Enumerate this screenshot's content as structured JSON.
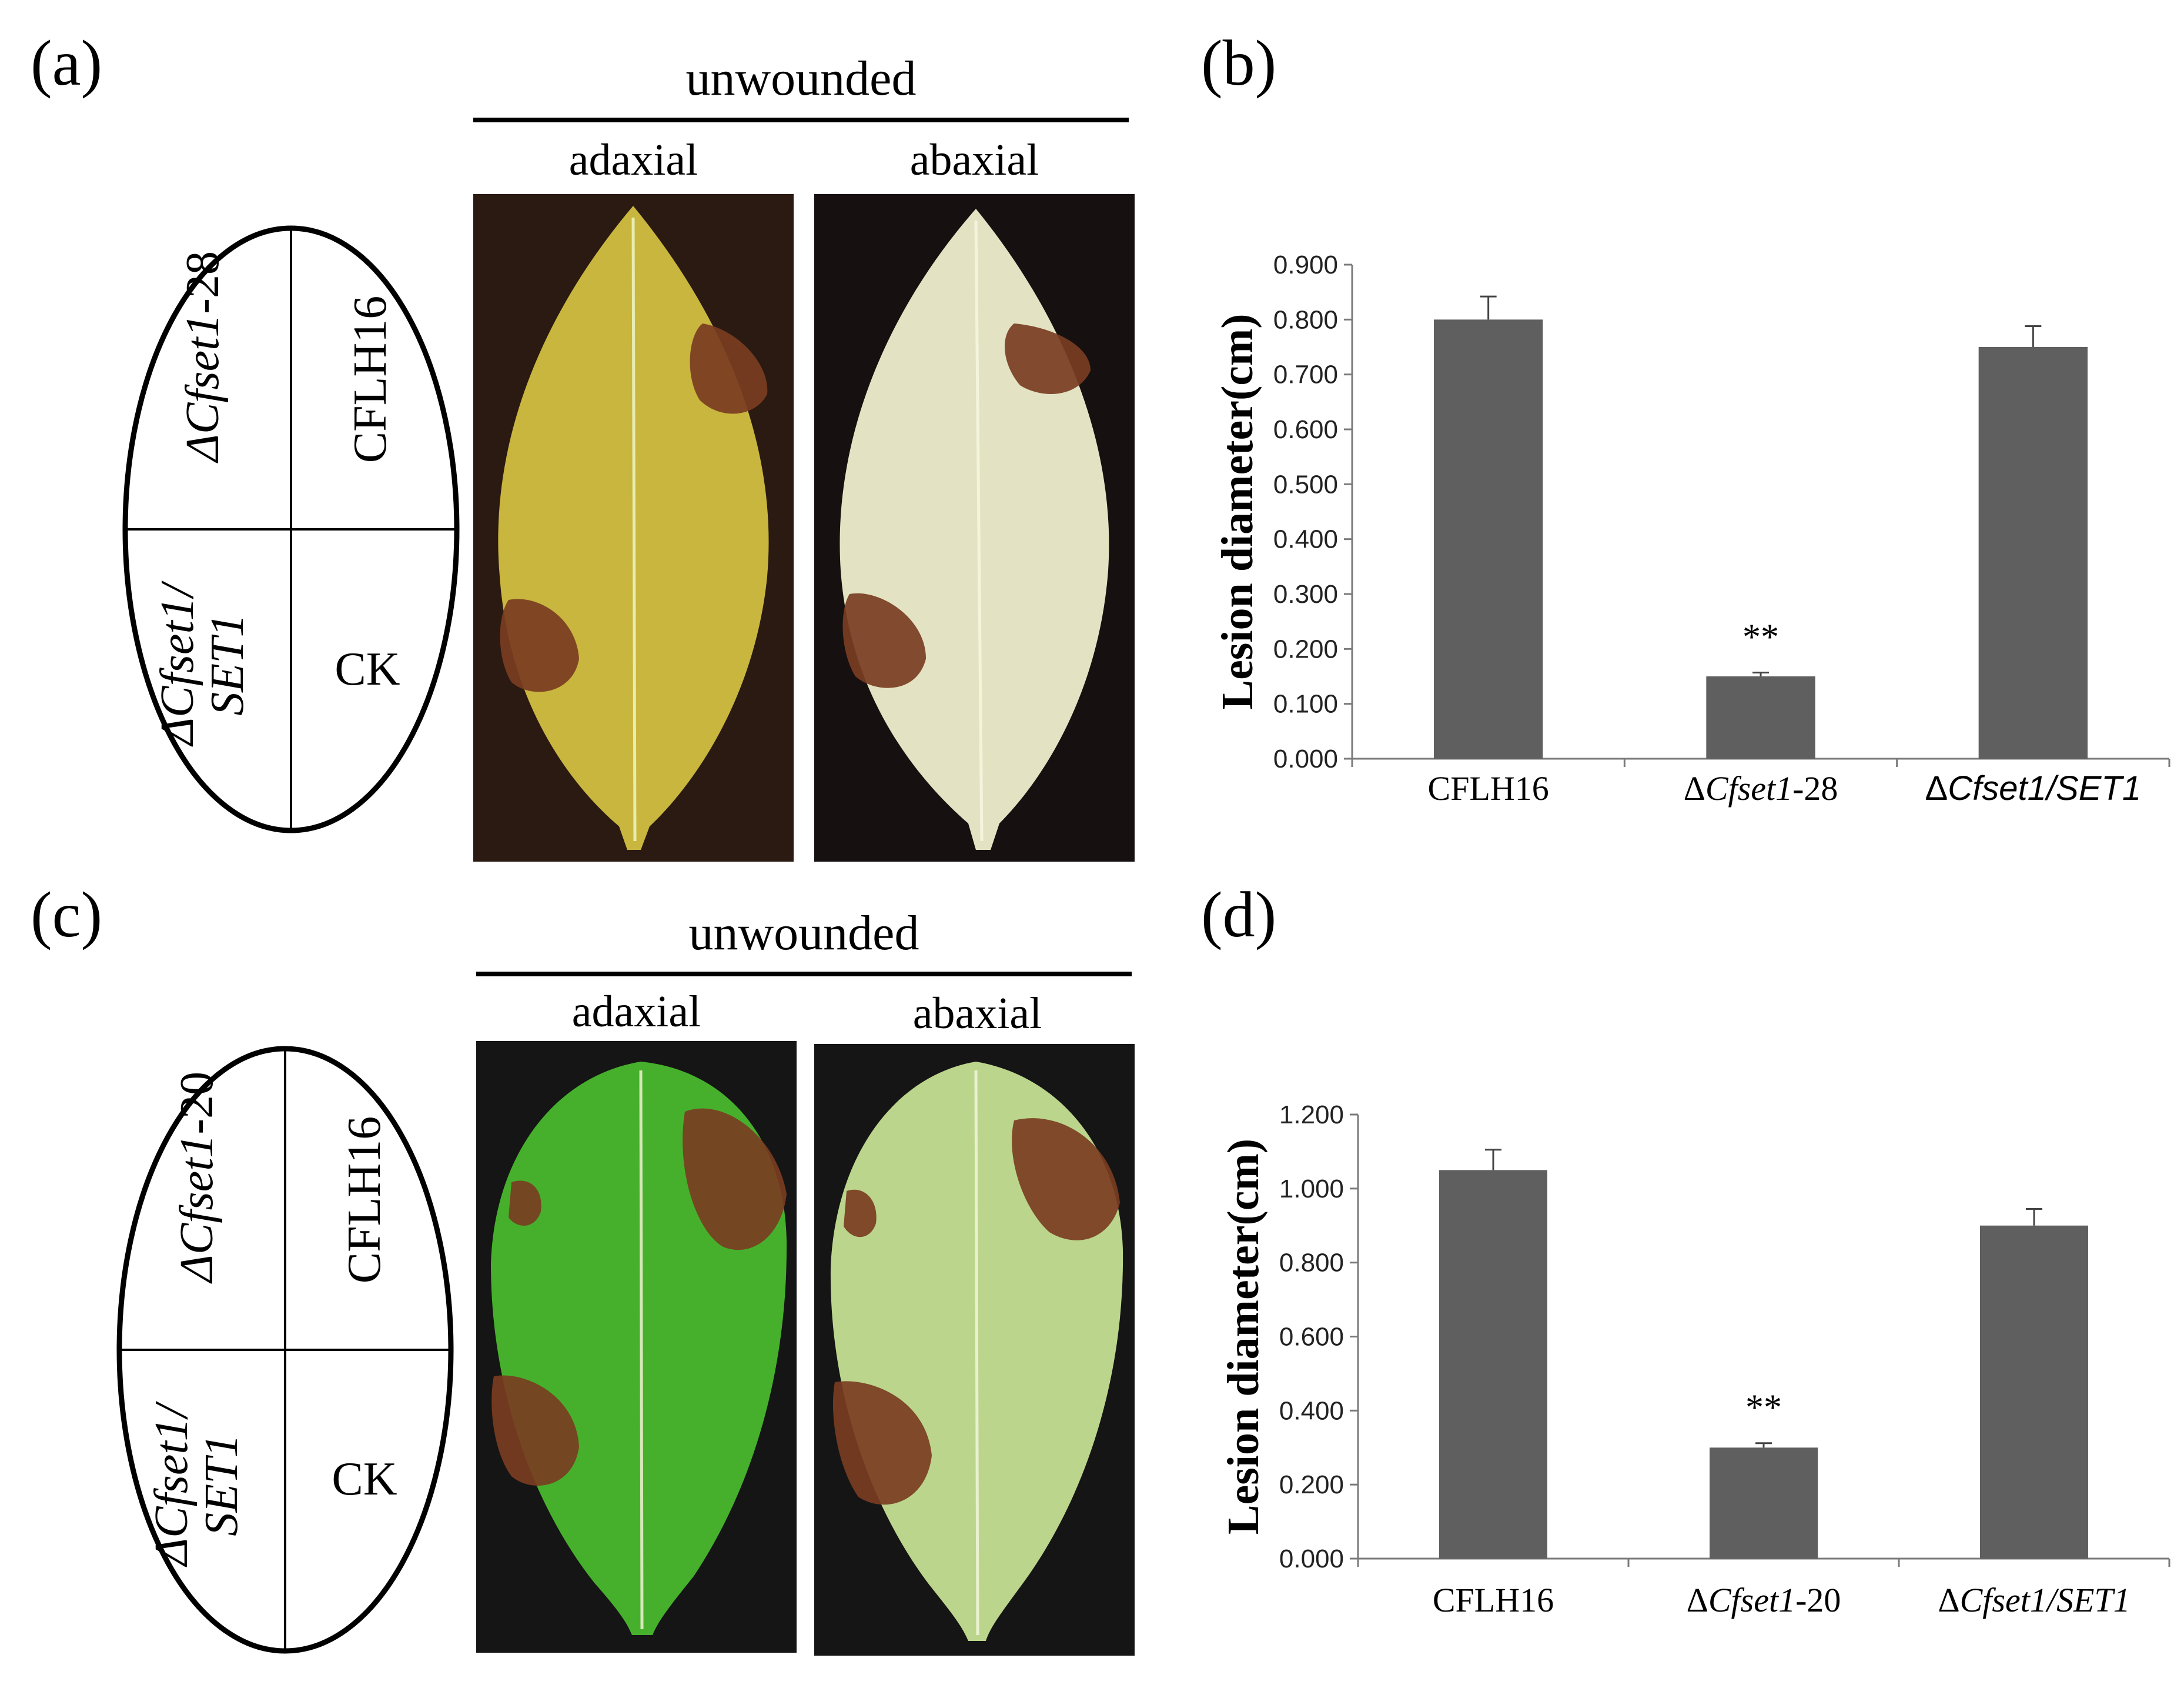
{
  "panels": {
    "a": {
      "label": "(a)",
      "header": "unwounded",
      "adaxial": "adaxial",
      "abaxial": "abaxial",
      "quadrants": {
        "top_left_prefix": "ΔCfset1",
        "top_left_suffix": "-28",
        "top_right": "CFLH16",
        "bottom_left_line1": "ΔCfset1/",
        "bottom_left_line2": "SET1",
        "bottom_right": "CK"
      }
    },
    "b": {
      "label": "(b)"
    },
    "c": {
      "label": "(c)",
      "header": "unwounded",
      "adaxial": "adaxial",
      "abaxial": "abaxial",
      "quadrants": {
        "top_left_prefix": "ΔCfset1",
        "top_left_suffix": "-20",
        "top_right": "CFLH16",
        "bottom_left_line1": "ΔCfset1/",
        "bottom_left_line2": "SET1",
        "bottom_right": "CK"
      }
    },
    "d": {
      "label": "(d)"
    }
  },
  "colors": {
    "bar": "#5f5f5f",
    "leaf_a_adaxial": "#c9b63e",
    "leaf_a_abaxial": "#e3e3c3",
    "leaf_c_adaxial": "#46b02c",
    "leaf_c_abaxial": "#bcd58c",
    "lesion": "#7a3d22",
    "bg_a_adaxial": "#2a1a12",
    "bg_a_abaxial": "#161010",
    "bg_c": "#151515"
  },
  "chart_data": [
    {
      "type": "bar",
      "panel": "b",
      "categories": [
        "CFLH16",
        "ΔCfset1-28",
        "ΔCfset1/SET1"
      ],
      "values": [
        0.8,
        0.15,
        0.75
      ],
      "errors": [
        0.042,
        0.007,
        0.038
      ],
      "significance": [
        "",
        "**",
        ""
      ],
      "ylabel": "Lesion diameter(cm)",
      "ylim": [
        0,
        0.9
      ],
      "yticks": [
        "0.000",
        "0.100",
        "0.200",
        "0.300",
        "0.400",
        "0.500",
        "0.600",
        "0.700",
        "0.800",
        "0.900"
      ]
    },
    {
      "type": "bar",
      "panel": "d",
      "categories": [
        "CFLH16",
        "ΔCfset1-20",
        "ΔCfset1/SET1"
      ],
      "values": [
        1.05,
        0.3,
        0.9
      ],
      "errors": [
        0.055,
        0.012,
        0.045
      ],
      "significance": [
        "",
        "**",
        ""
      ],
      "ylabel": "Lesion diameter(cm)",
      "ylim": [
        0,
        1.2
      ],
      "yticks": [
        "0.000",
        "0.200",
        "0.400",
        "0.600",
        "0.800",
        "1.000",
        "1.200"
      ]
    }
  ]
}
